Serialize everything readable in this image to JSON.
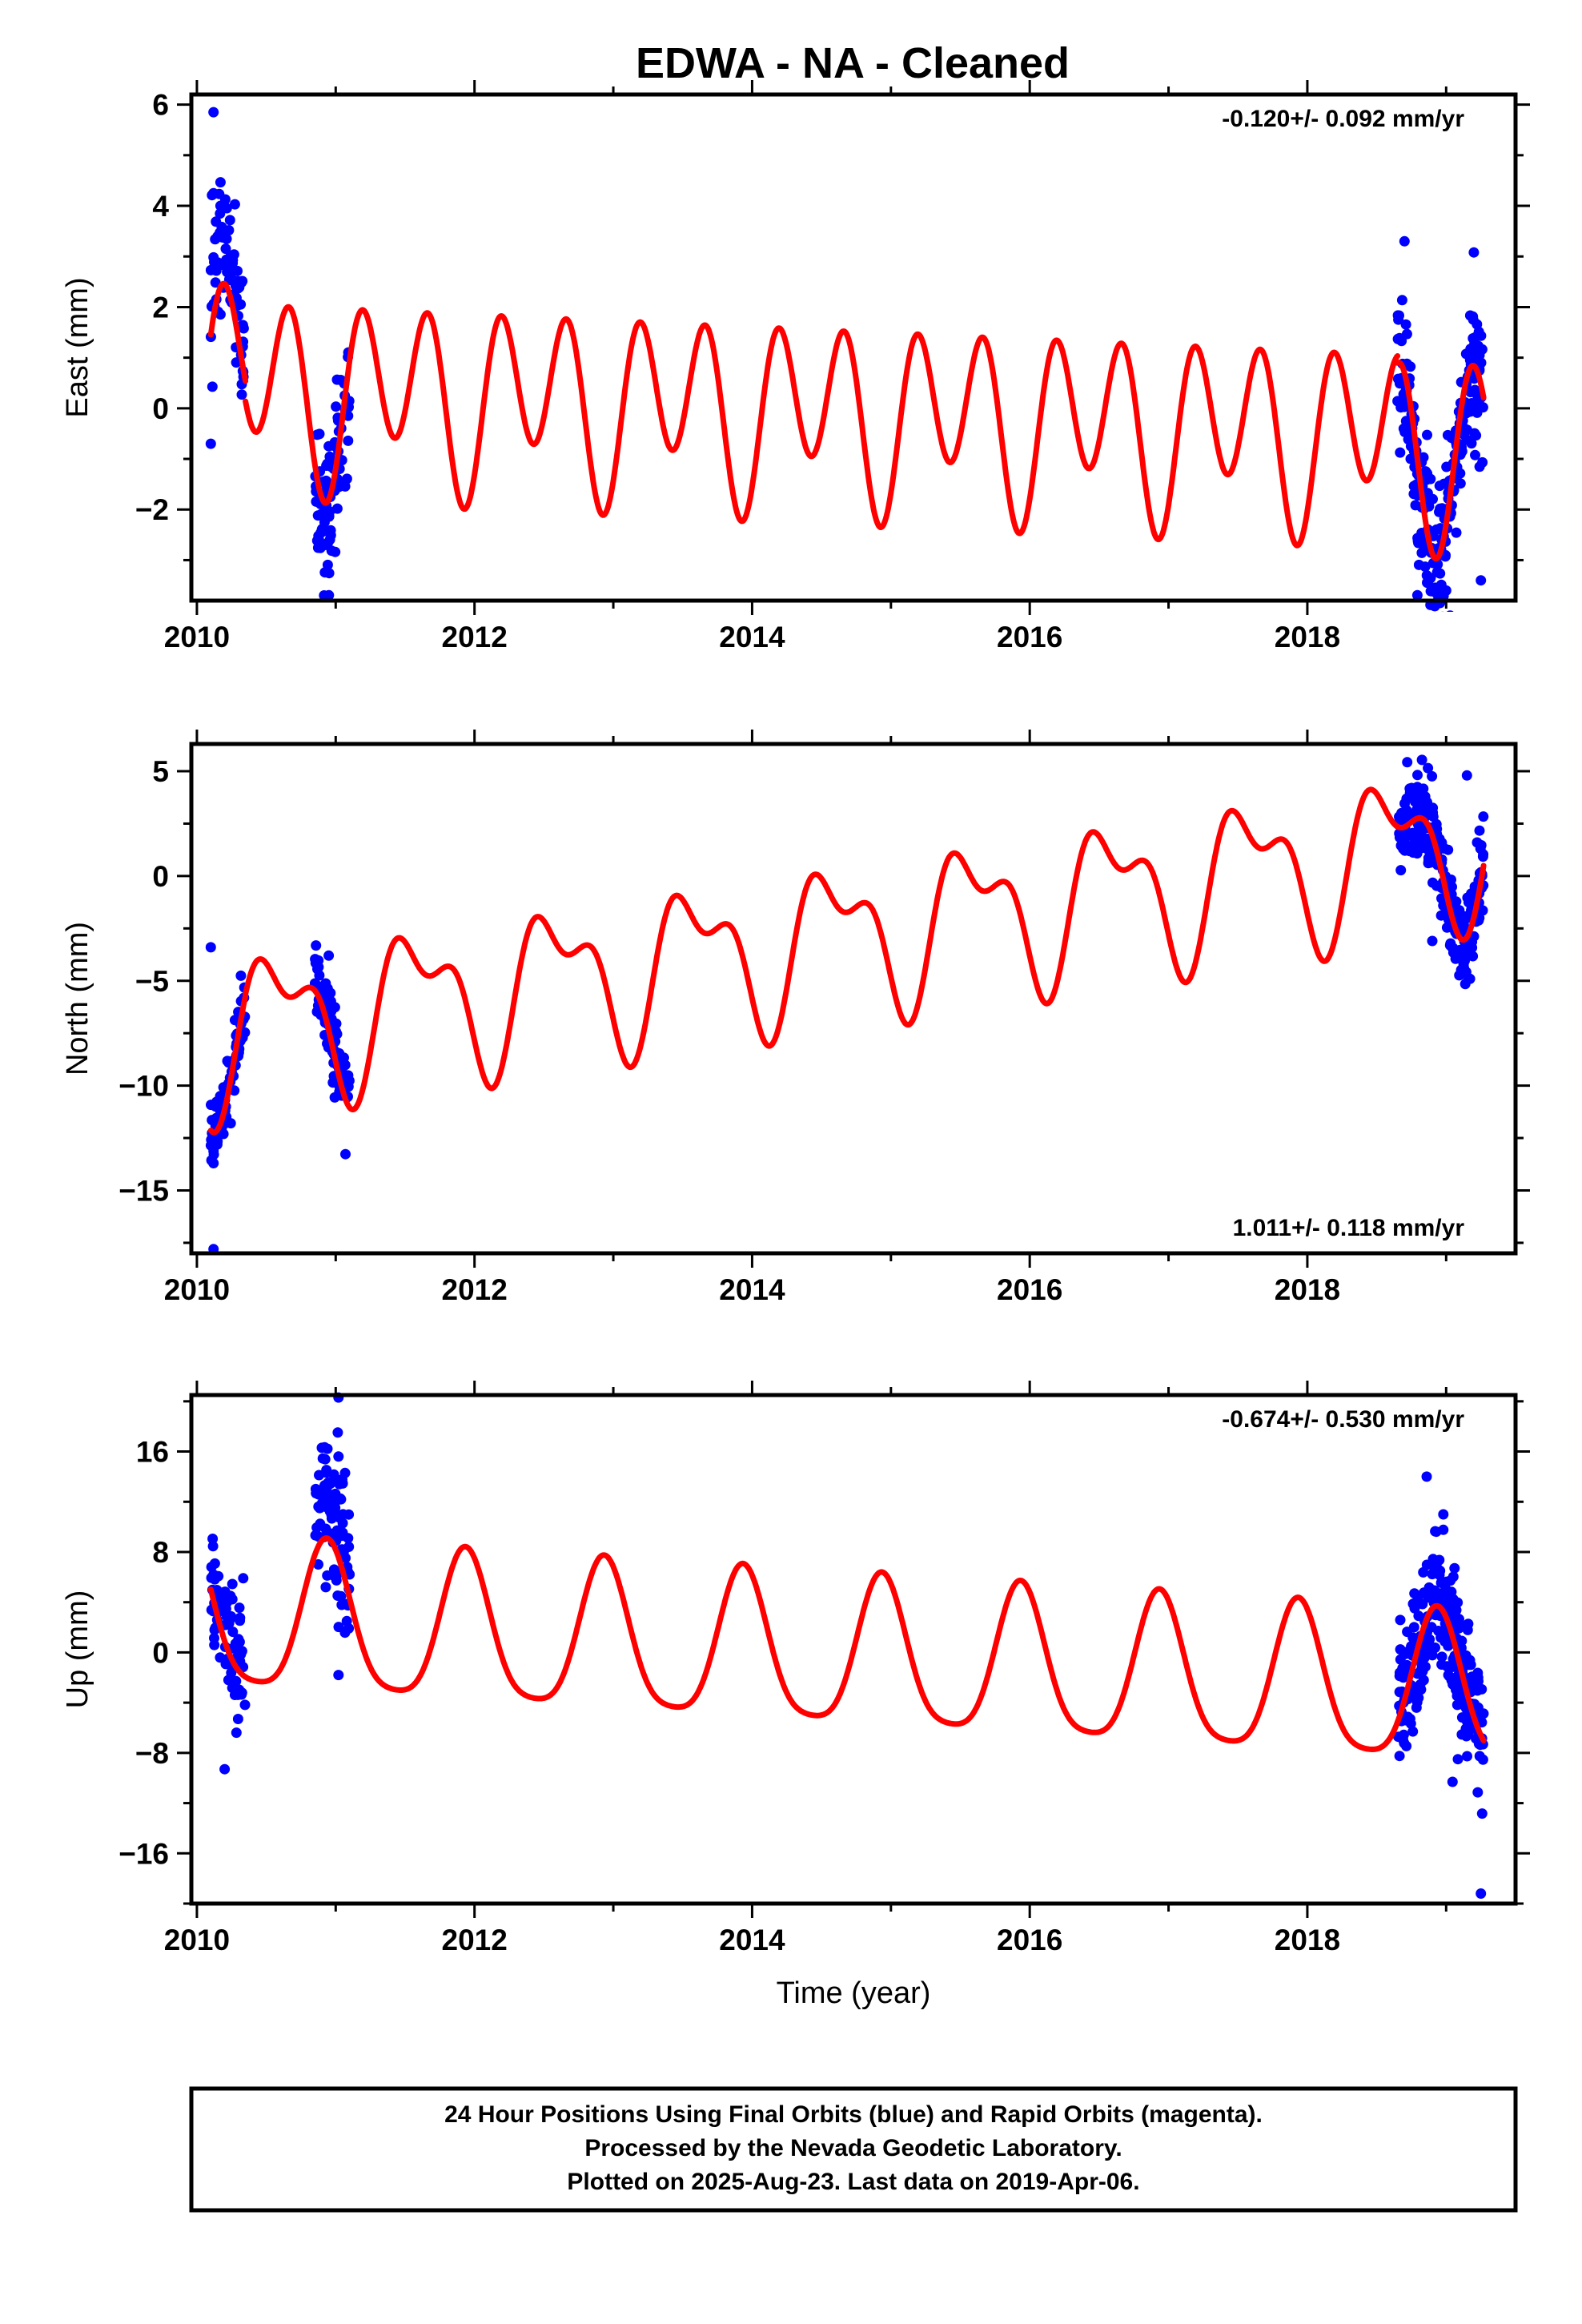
{
  "title": "EDWA  - NA - Cleaned",
  "footer": {
    "lines": [
      "24 Hour Positions Using Final Orbits (blue) and Rapid Orbits (magenta).",
      "Processed by the Nevada Geodetic Laboratory.",
      "Plotted on 2025-Aug-23. Last data on 2019-Apr-06."
    ]
  },
  "colors": {
    "data": "#0000ff",
    "model": "#ff0000",
    "axes": "#000000"
  },
  "chart_data": [
    {
      "type": "scatter",
      "ylabel": "East (mm)",
      "xlabel": "",
      "rate_label": "-0.120+/- 0.092 mm/yr",
      "rate_position": "top-right",
      "xlim": [
        2009.96,
        2019.5
      ],
      "ylim": [
        -3.8,
        6.2
      ],
      "xticks": [
        2010,
        2012,
        2014,
        2016,
        2018
      ],
      "yticks": [
        -2,
        0,
        2,
        4,
        6
      ],
      "yticklabels": [
        "−2",
        "0",
        "2",
        "4",
        "6"
      ],
      "grid": false,
      "model": {
        "offset": 0.0,
        "trend": -0.12,
        "annual_sin": 0.3,
        "annual_cos": -0.6,
        "semi_sin": 1.25,
        "semi_cos": -0.95
      },
      "series": [
        {
          "role": "data",
          "segments": [
            {
              "start": 2010.1,
              "end": 2010.35,
              "count": 80,
              "spread": 0.7,
              "offset": 1.0
            },
            {
              "start": 2010.85,
              "end": 2011.1,
              "count": 90,
              "spread": 0.8,
              "offset": -0.3
            },
            {
              "start": 2018.65,
              "end": 2019.27,
              "count": 260,
              "spread": 0.9,
              "offset": -0.35
            }
          ],
          "outliers": [
            [
              2010.12,
              5.85
            ],
            [
              2010.12,
              4.25
            ],
            [
              2010.17,
              4.0
            ],
            [
              2010.15,
              3.4
            ],
            [
              2010.1,
              -0.7
            ],
            [
              2010.92,
              -2.25
            ],
            [
              2018.7,
              3.3
            ],
            [
              2019.0,
              -3.6
            ],
            [
              2019.25,
              -3.4
            ]
          ]
        }
      ]
    },
    {
      "type": "scatter",
      "ylabel": "North (mm)",
      "xlabel": "",
      "rate_label": "1.011+/- 0.118 mm/yr",
      "rate_position": "bottom-right",
      "xlim": [
        2009.96,
        2019.5
      ],
      "ylim": [
        -18.0,
        6.3
      ],
      "xticks": [
        2010,
        2012,
        2014,
        2016,
        2018
      ],
      "yticks": [
        -15,
        -10,
        -5,
        0,
        5
      ],
      "yticklabels": [
        "−15",
        "−10",
        "−5",
        "0",
        "5"
      ],
      "grid": false,
      "model": {
        "offset": -3.57,
        "trend": 1.011,
        "annual_sin": -1.68,
        "annual_cos": -2.6,
        "semi_sin": -1.64,
        "semi_cos": 0.34
      },
      "series": [
        {
          "role": "data",
          "segments": [
            {
              "start": 2010.1,
              "end": 2010.35,
              "count": 80,
              "spread": 0.8,
              "offset": -0.2
            },
            {
              "start": 2010.85,
              "end": 2011.1,
              "count": 90,
              "spread": 0.9,
              "offset": 0.4
            },
            {
              "start": 2018.65,
              "end": 2019.27,
              "count": 260,
              "spread": 1.1,
              "offset": 0.0
            }
          ],
          "outliers": [
            [
              2010.12,
              -13.7
            ],
            [
              2010.12,
              -17.8
            ],
            [
              2010.1,
              -3.4
            ],
            [
              2010.95,
              -3.8
            ],
            [
              2018.9,
              -3.1
            ],
            [
              2019.15,
              4.8
            ]
          ]
        }
      ]
    },
    {
      "type": "scatter",
      "ylabel": "Up (mm)",
      "xlabel": "Time (year)",
      "rate_label": "-0.674+/- 0.530 mm/yr",
      "rate_position": "top-right",
      "xlim": [
        2009.96,
        2019.5
      ],
      "ylim": [
        -20.0,
        20.5
      ],
      "xticks": [
        2010,
        2012,
        2014,
        2016,
        2018
      ],
      "yticks": [
        -16,
        -8,
        0,
        8,
        16
      ],
      "yticklabels": [
        "−16",
        "−8",
        "0",
        "8",
        "16"
      ],
      "grid": false,
      "model": {
        "offset": 0.0,
        "trend": -0.674,
        "annual_sin": -2.3,
        "annual_cos": 5.4,
        "semi_sin": -0.9,
        "semi_cos": 0.75
      },
      "series": [
        {
          "role": "data",
          "segments": [
            {
              "start": 2010.1,
              "end": 2010.35,
              "count": 80,
              "spread": 2.5,
              "offset": 0.0
            },
            {
              "start": 2010.85,
              "end": 2011.1,
              "count": 90,
              "spread": 3.0,
              "offset": 2.5
            },
            {
              "start": 2018.65,
              "end": 2019.27,
              "count": 260,
              "spread": 2.6,
              "offset": 0.0
            }
          ],
          "outliers": [
            [
              2010.2,
              -9.3
            ],
            [
              2011.02,
              20.3
            ],
            [
              2010.9,
              16.3
            ],
            [
              2011.02,
              15.6
            ],
            [
              2011.02,
              -1.8
            ],
            [
              2018.86,
              14.0
            ],
            [
              2018.98,
              11.0
            ],
            [
              2019.25,
              -19.2
            ]
          ]
        }
      ]
    }
  ]
}
